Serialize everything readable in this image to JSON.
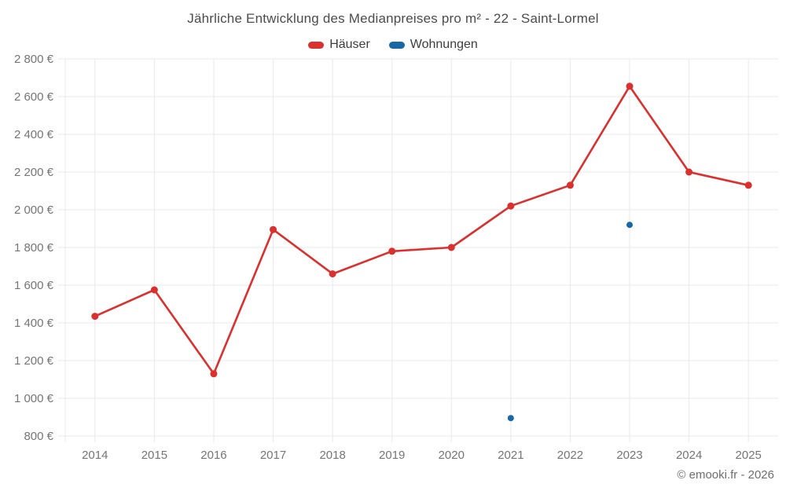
{
  "footer": {
    "copyright": "© emooki.fr - 2026"
  },
  "colors": {
    "grid": "#e9e9e9",
    "tick_text": "#757575",
    "title_text": "#4c4c4c",
    "legend_text": "#3d3d3d",
    "footer_text": "#6e6e6e",
    "haeuser": "#db302d",
    "wohnungen": "#1768a4"
  },
  "chart_data": {
    "type": "line",
    "title": "Jährliche Entwicklung des Medianpreises pro m² - 22 - Saint-Lormel",
    "xlabel": "",
    "ylabel": "",
    "categories": [
      "2014",
      "2015",
      "2016",
      "2017",
      "2018",
      "2019",
      "2020",
      "2021",
      "2022",
      "2023",
      "2024",
      "2025"
    ],
    "series": [
      {
        "name": "Häuser",
        "color": "#db302d",
        "values": [
          1435,
          1575,
          1130,
          1895,
          1660,
          1780,
          1800,
          2020,
          2130,
          2655,
          2200,
          2130
        ]
      },
      {
        "name": "Wohnungen",
        "color": "#1768a4",
        "values": [
          null,
          null,
          null,
          null,
          null,
          null,
          null,
          895,
          null,
          1920,
          null,
          null
        ]
      }
    ],
    "ylim": [
      800,
      2800
    ],
    "y_tick_values": [
      800,
      1000,
      1200,
      1400,
      1600,
      1800,
      2000,
      2200,
      2400,
      2600,
      2800
    ],
    "y_tick_labels": [
      "800 €",
      "1 000 €",
      "1 200 €",
      "1 400 €",
      "1 600 €",
      "1 800 €",
      "2 000 €",
      "2 200 €",
      "2 400 €",
      "2 600 €",
      "2 800 €"
    ],
    "grid": true,
    "legend_position": "top"
  }
}
